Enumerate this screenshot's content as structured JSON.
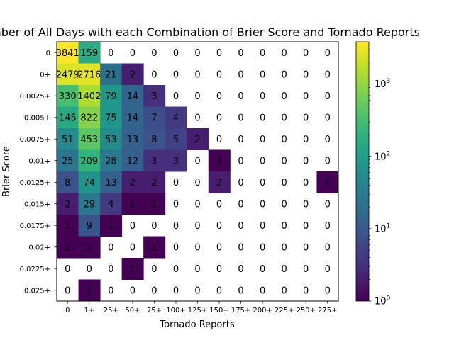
{
  "chart_data": {
    "type": "heatmap",
    "title": "Number of All Days with each Combination of Brier Score and Tornado Reports",
    "xlabel": "Tornado Reports",
    "ylabel": "Brier Score",
    "x_categories": [
      "0",
      "1+",
      "25+",
      "50+",
      "75+",
      "100+",
      "125+",
      "150+",
      "175+",
      "200+",
      "225+",
      "250+",
      "275+"
    ],
    "y_categories": [
      "0",
      "0+",
      "0.0025+",
      "0.005+",
      "0.0075+",
      "0.01+",
      "0.0125+",
      "0.015+",
      "0.0175+",
      "0.02+",
      "0.0225+",
      "0.025+"
    ],
    "values": [
      [
        3841,
        159,
        0,
        0,
        0,
        0,
        0,
        0,
        0,
        0,
        0,
        0,
        0
      ],
      [
        2479,
        2716,
        21,
        2,
        0,
        0,
        0,
        0,
        0,
        0,
        0,
        0,
        0
      ],
      [
        330,
        1402,
        79,
        14,
        3,
        0,
        0,
        0,
        0,
        0,
        0,
        0,
        0
      ],
      [
        145,
        822,
        75,
        14,
        7,
        4,
        0,
        0,
        0,
        0,
        0,
        0,
        0
      ],
      [
        51,
        453,
        53,
        13,
        8,
        5,
        2,
        0,
        0,
        0,
        0,
        0,
        0
      ],
      [
        25,
        209,
        28,
        12,
        3,
        3,
        0,
        1,
        0,
        0,
        0,
        0,
        0
      ],
      [
        8,
        74,
        13,
        2,
        2,
        0,
        0,
        2,
        0,
        0,
        0,
        0,
        1
      ],
      [
        2,
        29,
        4,
        1,
        1,
        0,
        0,
        0,
        0,
        0,
        0,
        0,
        0
      ],
      [
        1,
        9,
        1,
        0,
        0,
        0,
        0,
        0,
        0,
        0,
        0,
        0,
        0
      ],
      [
        1,
        1,
        0,
        0,
        1,
        0,
        0,
        0,
        0,
        0,
        0,
        0,
        0
      ],
      [
        0,
        0,
        0,
        1,
        0,
        0,
        0,
        0,
        0,
        0,
        0,
        0,
        0
      ],
      [
        0,
        1,
        0,
        0,
        0,
        0,
        0,
        0,
        0,
        0,
        0,
        0,
        0
      ]
    ],
    "colorscale": "viridis",
    "color_scale_type": "log",
    "color_range": [
      1,
      3841
    ],
    "zero_cells": "blank",
    "colorbar_ticks": [
      {
        "value": 1,
        "base": "10",
        "exp": "0"
      },
      {
        "value": 10,
        "base": "10",
        "exp": "1"
      },
      {
        "value": 100,
        "base": "10",
        "exp": "2"
      },
      {
        "value": 1000,
        "base": "10",
        "exp": "3"
      }
    ],
    "colorbar_position": "right"
  }
}
